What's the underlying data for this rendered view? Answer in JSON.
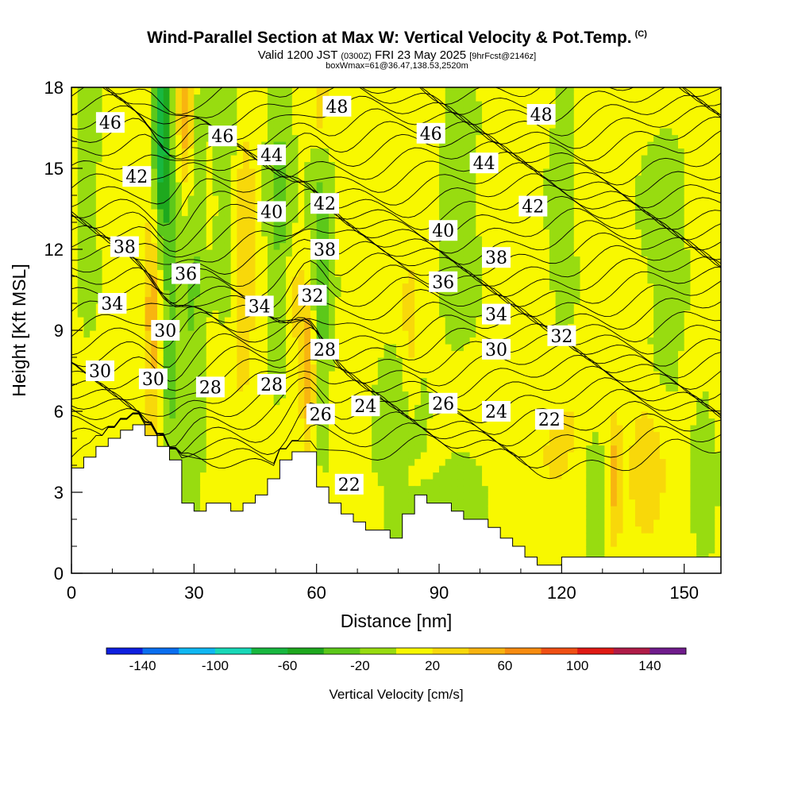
{
  "header": {
    "title": "Wind-Parallel Section at Max W: Vertical Velocity & Pot.Temp.",
    "copyright": "(C)",
    "valid_prefix": "Valid 1200 JST",
    "valid_zulu": "(0300Z)",
    "valid_date": "FRI 23 May 2025",
    "forecast": "[9hrFcst@2146z]",
    "box_info": "boxWmax=61@36.47,138.53,2520m"
  },
  "chart_data": {
    "type": "heatmap",
    "xlabel": "Distance [nm]",
    "ylabel": "Height [Kft MSL]",
    "xlim": [
      0,
      159
    ],
    "ylim": [
      0,
      18
    ],
    "x_ticks": [
      0,
      30,
      60,
      90,
      120,
      150
    ],
    "y_ticks": [
      0,
      3,
      6,
      9,
      12,
      15,
      18
    ],
    "grid": false,
    "terrain": {
      "x": [
        0,
        3,
        3,
        6,
        6,
        9,
        9,
        12,
        12,
        15,
        15,
        18,
        18,
        21,
        21,
        24,
        24,
        27,
        27,
        30,
        30,
        33,
        33,
        39,
        39,
        42,
        42,
        45,
        45,
        48,
        48,
        51,
        51,
        54,
        54,
        60,
        60,
        63,
        63,
        66,
        66,
        69,
        69,
        72,
        72,
        78,
        78,
        81,
        81,
        84,
        84,
        87,
        87,
        93,
        93,
        96,
        96,
        102,
        102,
        105,
        105,
        108,
        108,
        111,
        111,
        114,
        114,
        120,
        120,
        159
      ],
      "y": [
        3.9,
        3.9,
        4.3,
        4.3,
        4.7,
        4.7,
        5.0,
        5.0,
        5.3,
        5.3,
        5.5,
        5.5,
        5.1,
        5.1,
        4.7,
        4.7,
        4.2,
        4.2,
        2.6,
        2.6,
        2.3,
        2.3,
        2.6,
        2.6,
        2.3,
        2.3,
        2.6,
        2.6,
        2.9,
        2.9,
        3.5,
        3.5,
        4.2,
        4.2,
        4.5,
        4.5,
        3.2,
        3.2,
        2.6,
        2.6,
        2.2,
        2.2,
        1.9,
        1.9,
        1.6,
        1.6,
        1.3,
        1.3,
        2.2,
        2.2,
        2.9,
        2.9,
        2.6,
        2.6,
        2.3,
        2.3,
        2.0,
        2.0,
        1.7,
        1.7,
        1.3,
        1.3,
        1.0,
        1.0,
        0.6,
        0.6,
        0.3,
        0.3,
        0.6,
        0.6
      ]
    },
    "vertical_velocity_features": [
      {
        "x": 22,
        "y": 16.5,
        "sx": 1.4,
        "sy": 2.5,
        "w": -75
      },
      {
        "x": 24,
        "y": 10,
        "sx": 2.5,
        "sy": 6,
        "w": -35
      },
      {
        "x": 30,
        "y": 12,
        "sx": 2,
        "sy": 6,
        "w": -30
      },
      {
        "x": 51,
        "y": 14,
        "sx": 2.5,
        "sy": 4,
        "w": -35
      },
      {
        "x": 61,
        "y": 11.5,
        "sx": 2,
        "sy": 4,
        "w": -45
      },
      {
        "x": 4,
        "y": 15,
        "sx": 2,
        "sy": 4,
        "w": -25
      },
      {
        "x": 38,
        "y": 15,
        "sx": 2,
        "sy": 4,
        "w": -30
      },
      {
        "x": 95,
        "y": 13,
        "sx": 4,
        "sy": 4,
        "w": -18
      },
      {
        "x": 80,
        "y": 6,
        "sx": 5,
        "sy": 2,
        "w": -18
      },
      {
        "x": 120,
        "y": 13,
        "sx": 3,
        "sy": 5,
        "w": -15
      },
      {
        "x": 145,
        "y": 12,
        "sx": 5,
        "sy": 5,
        "w": -15
      },
      {
        "x": 128,
        "y": 2,
        "sx": 2,
        "sy": 3,
        "w": -20
      },
      {
        "x": 155,
        "y": 3,
        "sx": 2,
        "sy": 3,
        "w": -22
      },
      {
        "x": 90,
        "y": 1.5,
        "sx": 12,
        "sy": 2,
        "w": -12
      },
      {
        "x": 28,
        "y": 17,
        "sx": 1.5,
        "sy": 2.5,
        "w": 60
      },
      {
        "x": 20,
        "y": 9,
        "sx": 1.5,
        "sy": 3.5,
        "w": 50
      },
      {
        "x": 58,
        "y": 7.5,
        "sx": 1.2,
        "sy": 2,
        "w": 55
      },
      {
        "x": 61,
        "y": 17.5,
        "sx": 1.5,
        "sy": 1.5,
        "w": 40
      },
      {
        "x": 42,
        "y": 12,
        "sx": 2.5,
        "sy": 4,
        "w": 25
      },
      {
        "x": 83,
        "y": 8.5,
        "sx": 1.5,
        "sy": 2,
        "w": 25
      },
      {
        "x": 133,
        "y": 3.5,
        "sx": 1.3,
        "sy": 1.5,
        "w": 45
      },
      {
        "x": 141,
        "y": 4,
        "sx": 3,
        "sy": 2,
        "w": 30
      },
      {
        "x": 120,
        "y": 5,
        "sx": 4,
        "sy": 2,
        "w": 20
      },
      {
        "x": 55,
        "y": 10,
        "sx": 2,
        "sy": 2,
        "w": 20
      }
    ],
    "theta_contour_labels": [
      {
        "x": 9.5,
        "y": 16.7,
        "v": "46"
      },
      {
        "x": 37,
        "y": 16.2,
        "v": "46"
      },
      {
        "x": 65,
        "y": 17.3,
        "v": "48"
      },
      {
        "x": 115,
        "y": 17.0,
        "v": "48"
      },
      {
        "x": 88,
        "y": 16.3,
        "v": "46"
      },
      {
        "x": 16,
        "y": 14.7,
        "v": "42"
      },
      {
        "x": 49,
        "y": 15.5,
        "v": "44"
      },
      {
        "x": 101,
        "y": 15.2,
        "v": "44"
      },
      {
        "x": 62,
        "y": 13.7,
        "v": "42"
      },
      {
        "x": 113,
        "y": 13.6,
        "v": "42"
      },
      {
        "x": 13,
        "y": 12.1,
        "v": "38"
      },
      {
        "x": 49,
        "y": 13.4,
        "v": "40"
      },
      {
        "x": 91,
        "y": 12.7,
        "v": "40"
      },
      {
        "x": 62,
        "y": 12.0,
        "v": "38"
      },
      {
        "x": 104,
        "y": 11.7,
        "v": "38"
      },
      {
        "x": 28,
        "y": 11.1,
        "v": "36"
      },
      {
        "x": 91,
        "y": 10.8,
        "v": "36"
      },
      {
        "x": 10,
        "y": 10.0,
        "v": "34"
      },
      {
        "x": 46,
        "y": 9.9,
        "v": "34"
      },
      {
        "x": 104,
        "y": 9.6,
        "v": "34"
      },
      {
        "x": 59,
        "y": 10.3,
        "v": "32"
      },
      {
        "x": 120,
        "y": 8.8,
        "v": "32"
      },
      {
        "x": 23,
        "y": 9.0,
        "v": "30"
      },
      {
        "x": 104,
        "y": 8.3,
        "v": "30"
      },
      {
        "x": 7,
        "y": 7.5,
        "v": "30"
      },
      {
        "x": 20,
        "y": 7.2,
        "v": "30"
      },
      {
        "x": 34,
        "y": 6.9,
        "v": "28"
      },
      {
        "x": 49,
        "y": 7.0,
        "v": "28"
      },
      {
        "x": 62,
        "y": 8.3,
        "v": "28"
      },
      {
        "x": 61,
        "y": 5.9,
        "v": "26"
      },
      {
        "x": 72,
        "y": 6.2,
        "v": "24"
      },
      {
        "x": 91,
        "y": 6.3,
        "v": "26"
      },
      {
        "x": 104,
        "y": 6.0,
        "v": "24"
      },
      {
        "x": 117,
        "y": 5.7,
        "v": "22"
      },
      {
        "x": 68,
        "y": 3.3,
        "v": "22"
      }
    ],
    "colorbar": {
      "label": "Vertical Velocity [cm/s]",
      "tick_labels": [
        "-140",
        "-100",
        "-60",
        "-20",
        "20",
        "60",
        "100",
        "140"
      ],
      "tick_values": [
        -140,
        -100,
        -60,
        -20,
        20,
        60,
        100,
        140
      ],
      "bins": [
        -160,
        -140,
        -120,
        -100,
        -80,
        -60,
        -40,
        -20,
        0,
        20,
        40,
        60,
        80,
        100,
        120,
        140,
        160
      ],
      "colors": [
        "#0e1fe0",
        "#0a6ff0",
        "#10b8f2",
        "#18d8b8",
        "#18b840",
        "#1ea81e",
        "#5cc81a",
        "#98dc10",
        "#f8f800",
        "#f8d80a",
        "#f8b410",
        "#f88c10",
        "#f05014",
        "#e01a14",
        "#b01c48",
        "#701c8c"
      ]
    }
  }
}
